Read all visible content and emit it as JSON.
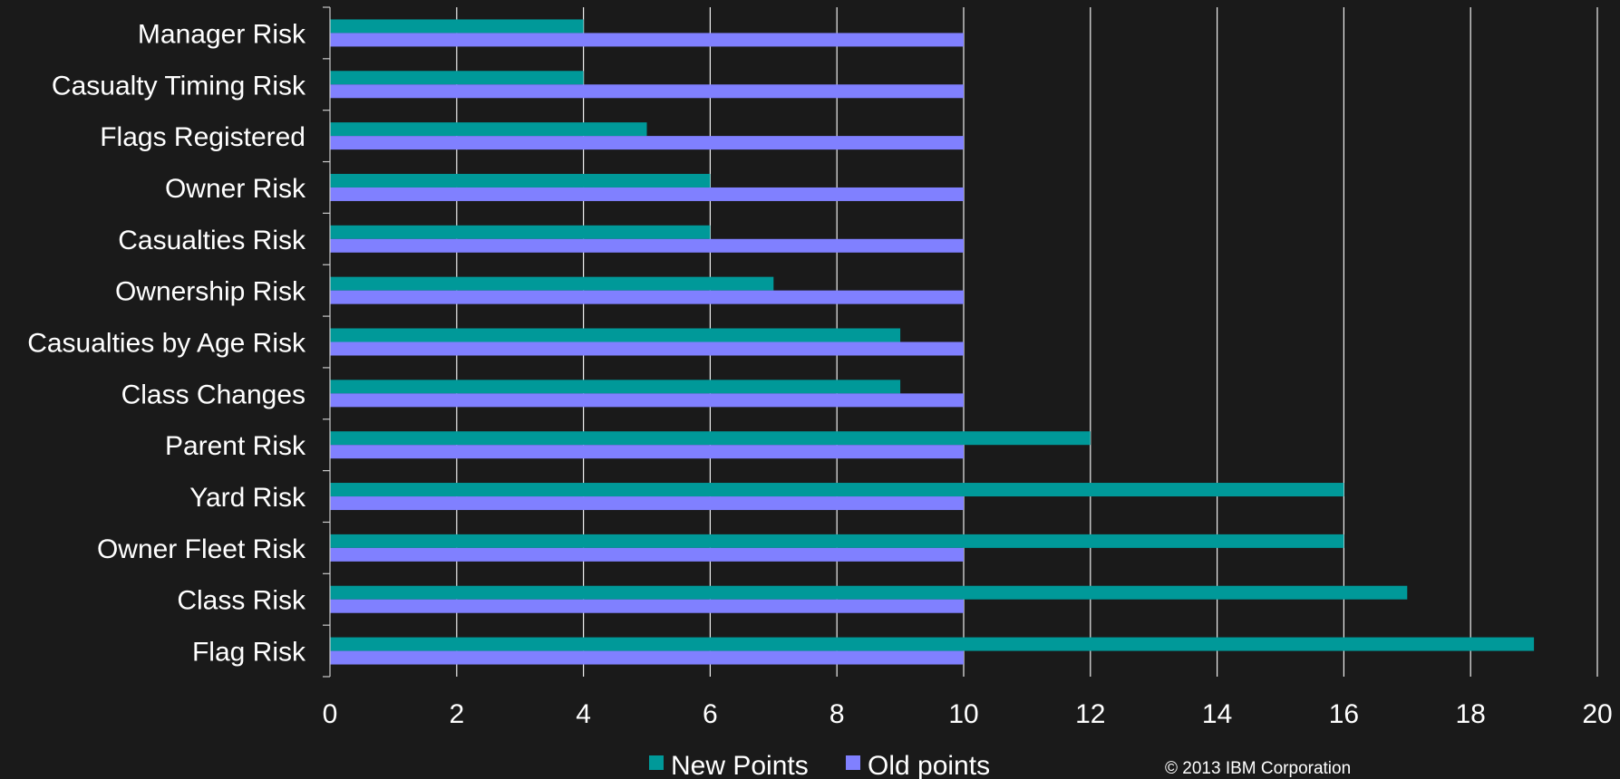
{
  "chart_data": {
    "type": "bar",
    "orientation": "horizontal",
    "categories": [
      "Manager Risk",
      "Casualty Timing Risk",
      "Flags Registered",
      "Owner Risk",
      "Casualties Risk",
      "Ownership Risk",
      "Casualties by Age Risk",
      "Class Changes",
      "Parent Risk",
      "Yard Risk",
      "Owner Fleet Risk",
      "Class Risk",
      "Flag Risk"
    ],
    "series": [
      {
        "name": "New Points",
        "color": "#009999",
        "values": [
          4,
          4,
          5,
          6,
          6,
          7,
          9,
          9,
          12,
          16,
          16,
          17,
          19
        ]
      },
      {
        "name": "Old points",
        "color": "#8080FF",
        "values": [
          10,
          10,
          10,
          10,
          10,
          10,
          10,
          10,
          10,
          10,
          10,
          10,
          10
        ]
      }
    ],
    "xlim": [
      0,
      20
    ],
    "xticks": [
      0,
      2,
      4,
      6,
      8,
      10,
      12,
      14,
      16,
      18,
      20
    ],
    "grid": "vertical",
    "legend_position": "bottom",
    "title": "",
    "xlabel": "",
    "ylabel": ""
  },
  "footer": {
    "copyright": "© 2013 IBM Corporation"
  }
}
